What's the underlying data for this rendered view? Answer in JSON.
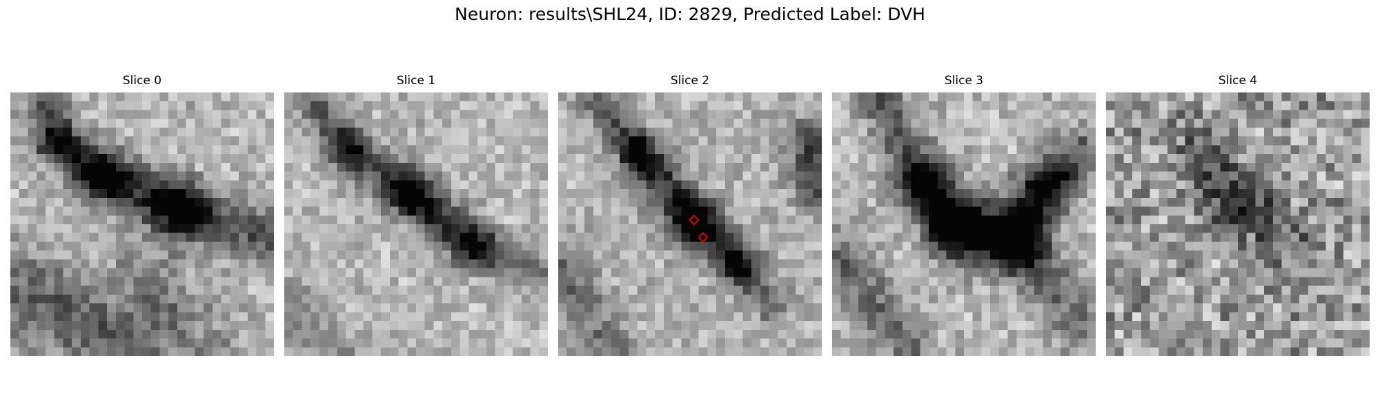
{
  "figure": {
    "title": "Neuron: results\\SHL24, ID: 2829, Predicted Label: DVH"
  },
  "panels": [
    {
      "title": "Slice 0"
    },
    {
      "title": "Slice 1"
    },
    {
      "title": "Slice 2"
    },
    {
      "title": "Slice 3"
    },
    {
      "title": "Slice 4"
    }
  ],
  "image": {
    "colormap": "grayscale",
    "grid": [
      30,
      30
    ]
  },
  "markers": {
    "color": "#e00000",
    "shape": "diamond",
    "slice": 2,
    "points": [
      {
        "col": 15,
        "row": 14
      },
      {
        "col": 16,
        "row": 16
      }
    ]
  }
}
